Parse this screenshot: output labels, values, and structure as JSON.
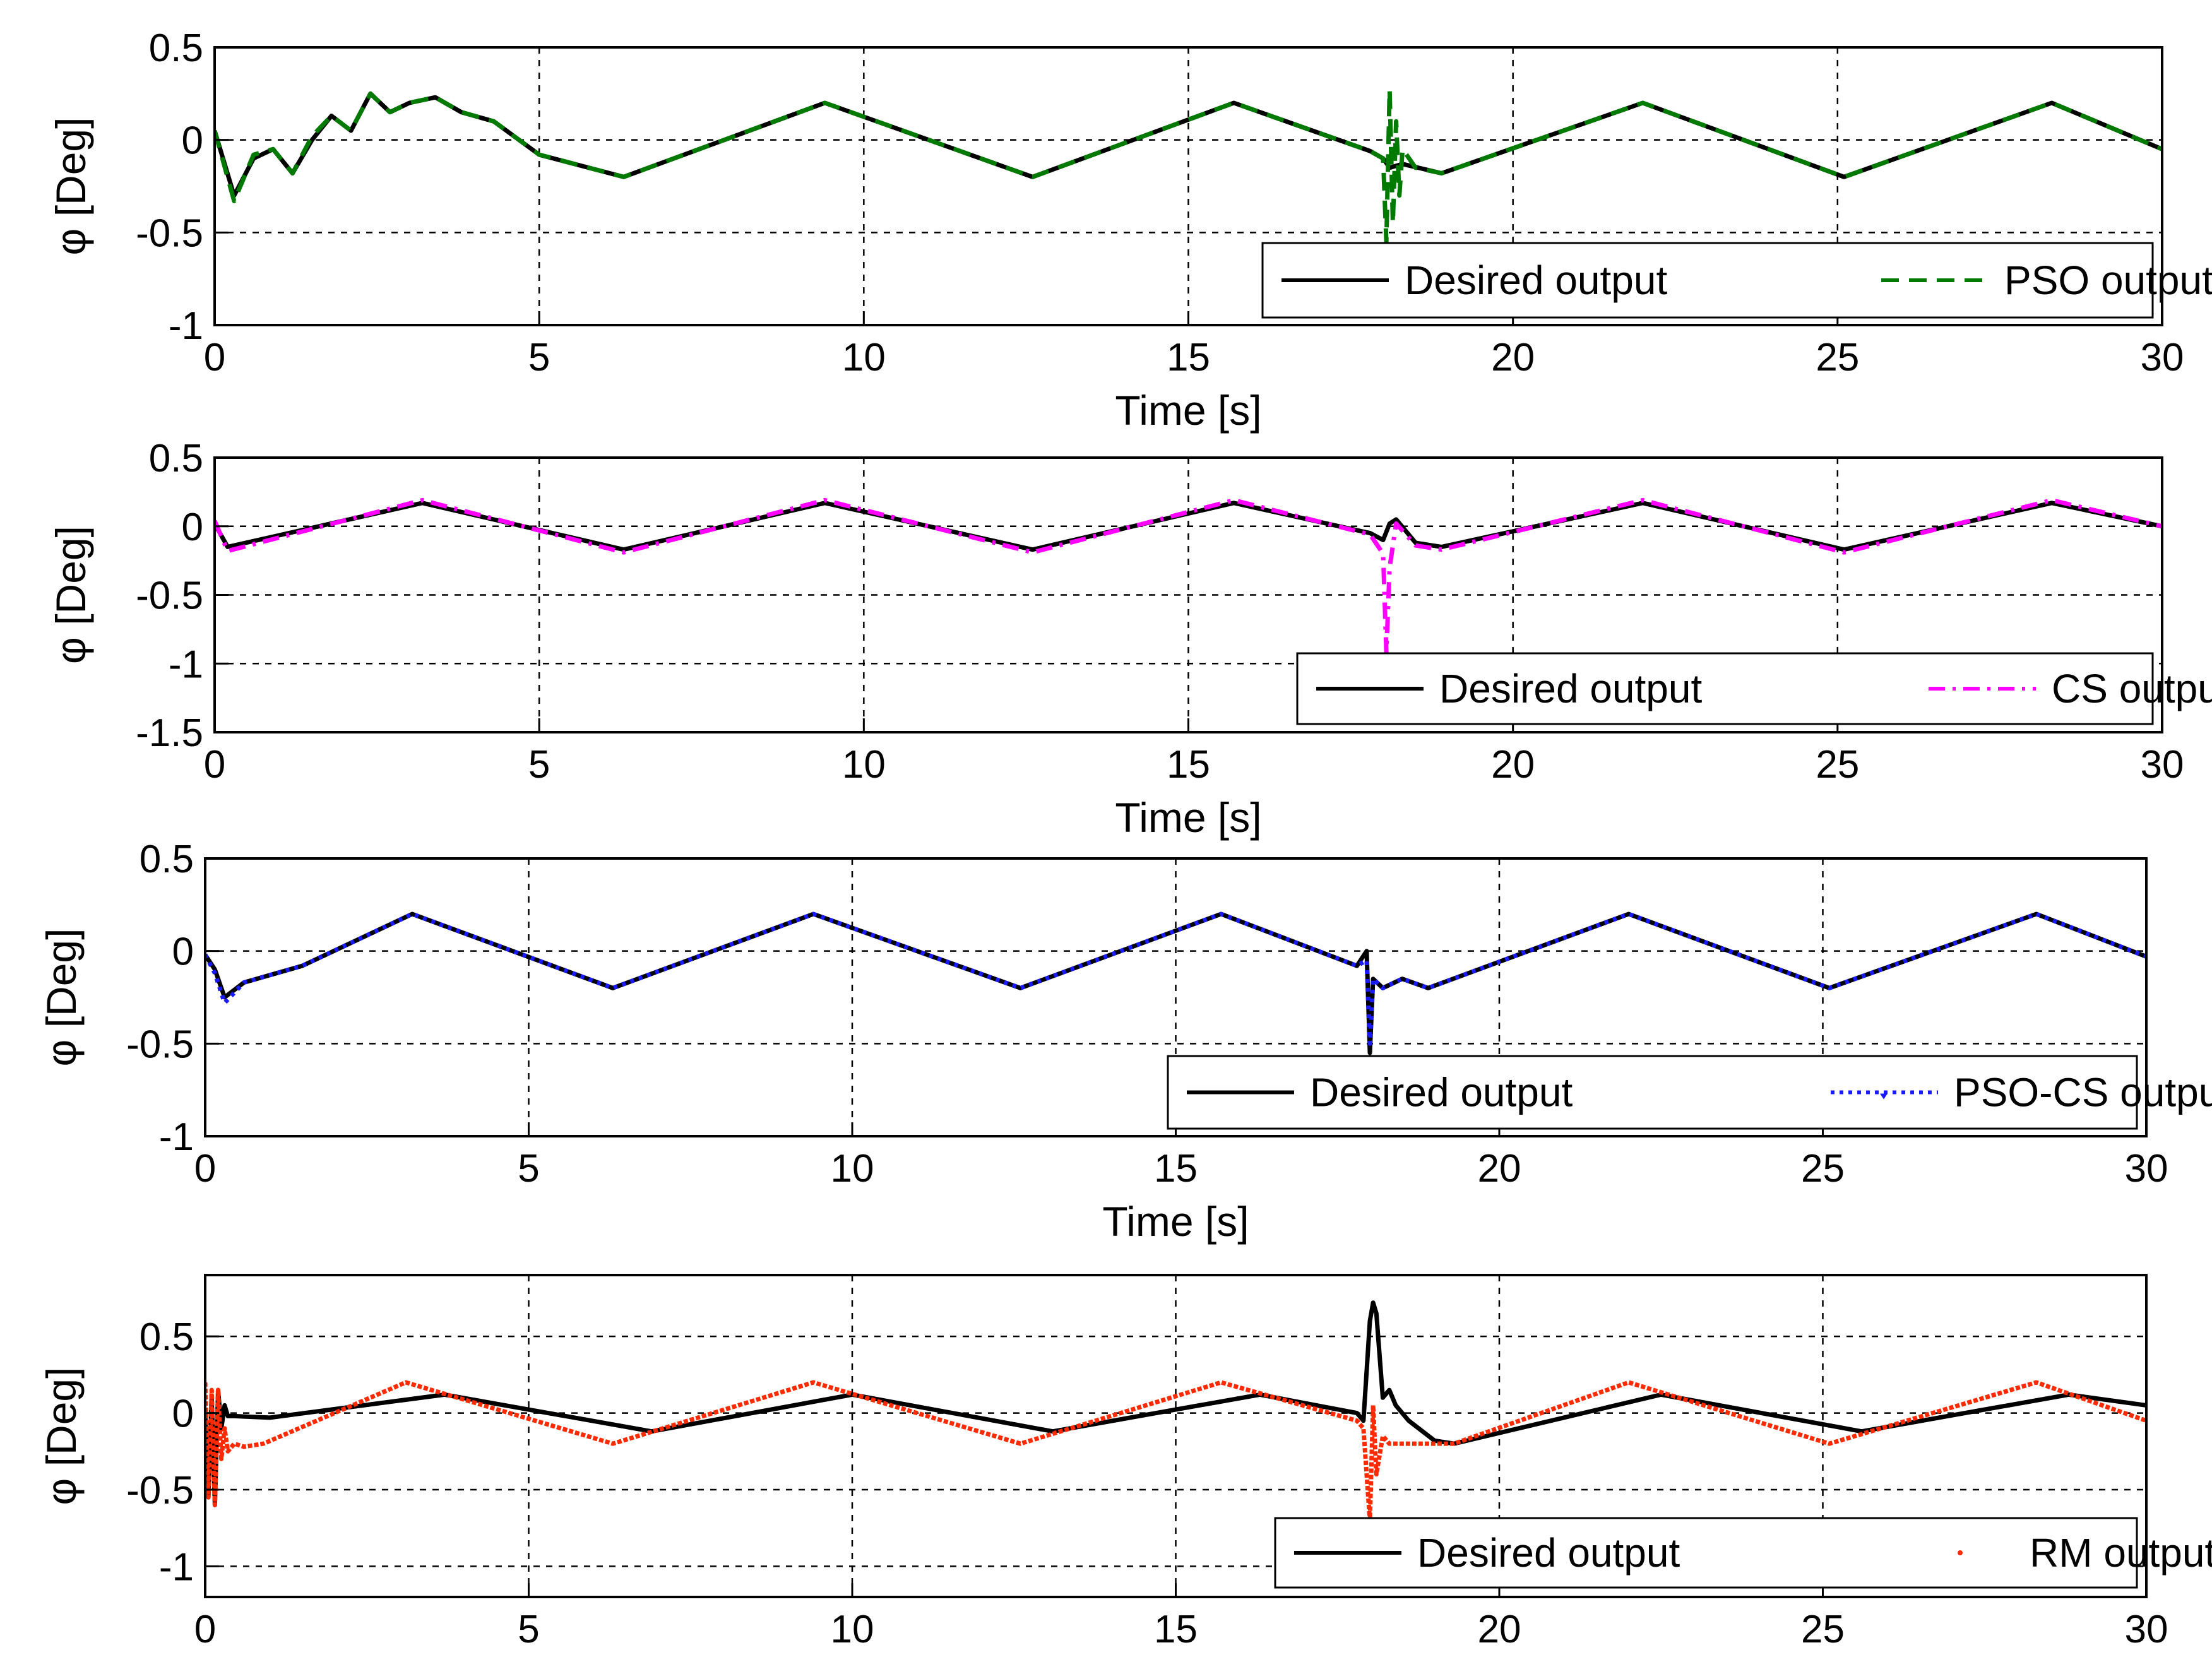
{
  "figure_title": "",
  "chart_data": [
    {
      "type": "line",
      "panel": 1,
      "xlabel": "Time [s]",
      "ylabel": "φ [Deg]",
      "xlim": [
        0,
        30
      ],
      "ylim": [
        -1,
        0.5
      ],
      "xticks": [
        0,
        5,
        10,
        15,
        20,
        25,
        30
      ],
      "xtick_labels": [
        "0",
        "5",
        "10",
        "15",
        "20",
        "25",
        "30"
      ],
      "yticks": [
        -1,
        -0.5,
        0,
        0.5
      ],
      "ytick_labels": [
        "-1",
        "-0.5",
        "0",
        "0.5"
      ],
      "grid": true,
      "legend_position": "lower-right",
      "series": [
        {
          "name": "Desired output",
          "color": "#000000",
          "style": "solid",
          "x": [
            0,
            0.3,
            0.6,
            0.9,
            1.2,
            1.5,
            1.8,
            2.1,
            2.4,
            2.7,
            3.0,
            3.4,
            3.8,
            4.3,
            5.0,
            6.3,
            9.4,
            12.6,
            15.7,
            17.8,
            18.0,
            18.1,
            18.3,
            18.9,
            22.0,
            25.1,
            28.3,
            30
          ],
          "y": [
            0.05,
            -0.3,
            -0.1,
            -0.05,
            -0.18,
            0.0,
            0.13,
            0.05,
            0.25,
            0.15,
            0.2,
            0.23,
            0.15,
            0.1,
            -0.08,
            -0.2,
            0.2,
            -0.2,
            0.2,
            -0.06,
            -0.1,
            -0.15,
            -0.13,
            -0.18,
            0.2,
            -0.2,
            0.2,
            -0.05
          ]
        },
        {
          "name": "PSO output",
          "color": "#007a00",
          "style": "dashed",
          "x": [
            0,
            0.3,
            0.6,
            0.9,
            1.2,
            1.5,
            1.8,
            2.1,
            2.4,
            2.7,
            3.0,
            3.4,
            3.8,
            4.3,
            5.0,
            6.3,
            9.4,
            12.6,
            15.7,
            17.8,
            18.0,
            18.05,
            18.1,
            18.15,
            18.2,
            18.25,
            18.3,
            18.5,
            18.9,
            22.0,
            25.1,
            28.3,
            30
          ],
          "y": [
            0.05,
            -0.33,
            -0.08,
            -0.05,
            -0.18,
            0.02,
            0.13,
            0.05,
            0.25,
            0.15,
            0.2,
            0.23,
            0.15,
            0.1,
            -0.08,
            -0.2,
            0.2,
            -0.2,
            0.2,
            -0.06,
            -0.1,
            -0.55,
            0.27,
            -0.45,
            0.1,
            -0.3,
            -0.05,
            -0.15,
            -0.18,
            0.2,
            -0.2,
            0.2,
            -0.05
          ]
        }
      ]
    },
    {
      "type": "line",
      "panel": 2,
      "xlabel": "Time [s]",
      "ylabel": "φ [Deg]",
      "xlim": [
        0,
        30
      ],
      "ylim": [
        -1.5,
        0.5
      ],
      "xticks": [
        0,
        5,
        10,
        15,
        20,
        25,
        30
      ],
      "xtick_labels": [
        "0",
        "5",
        "10",
        "15",
        "20",
        "25",
        "30"
      ],
      "yticks": [
        -1.5,
        -1,
        -0.5,
        0,
        0.5
      ],
      "ytick_labels": [
        "-1.5",
        "-1",
        "-0.5",
        "0",
        "0.5"
      ],
      "grid": true,
      "legend_position": "lower-right",
      "series": [
        {
          "name": "Desired output",
          "color": "#000000",
          "style": "solid",
          "x": [
            0,
            0.2,
            3.2,
            6.3,
            9.4,
            12.6,
            15.7,
            17.8,
            18.0,
            18.1,
            18.2,
            18.5,
            18.9,
            22.0,
            25.1,
            28.3,
            30
          ],
          "y": [
            0.02,
            -0.15,
            0.17,
            -0.17,
            0.17,
            -0.17,
            0.17,
            -0.05,
            -0.1,
            0.02,
            0.05,
            -0.12,
            -0.15,
            0.17,
            -0.17,
            0.17,
            0.0
          ]
        },
        {
          "name": "CS output",
          "color": "#ff00ff",
          "style": "dashdot",
          "x": [
            0,
            0.2,
            3.2,
            6.3,
            9.4,
            12.6,
            15.7,
            17.8,
            18.0,
            18.05,
            18.1,
            18.2,
            18.5,
            18.9,
            22.0,
            25.1,
            28.3,
            30
          ],
          "y": [
            0.04,
            -0.18,
            0.19,
            -0.19,
            0.19,
            -0.19,
            0.19,
            -0.06,
            -0.2,
            -0.92,
            -0.3,
            0.02,
            -0.14,
            -0.17,
            0.19,
            -0.19,
            0.19,
            0.0
          ]
        }
      ]
    },
    {
      "type": "line",
      "panel": 3,
      "xlabel": "Time [s]",
      "ylabel": "φ [Deg]",
      "xlim": [
        0,
        30
      ],
      "ylim": [
        -1,
        0.5
      ],
      "xticks": [
        0,
        5,
        10,
        15,
        20,
        25,
        30
      ],
      "xtick_labels": [
        "0",
        "5",
        "10",
        "15",
        "20",
        "25",
        "30"
      ],
      "yticks": [
        -1,
        -0.5,
        0,
        0.5
      ],
      "ytick_labels": [
        "-1",
        "-0.5",
        "0",
        "0.5"
      ],
      "grid": true,
      "legend_position": "lower-right",
      "series": [
        {
          "name": "Desired output",
          "color": "#000000",
          "style": "solid",
          "x": [
            0,
            0.15,
            0.3,
            0.6,
            1.5,
            3.2,
            6.3,
            9.4,
            12.6,
            15.7,
            17.8,
            17.95,
            18.0,
            18.05,
            18.2,
            18.5,
            18.9,
            22.0,
            25.1,
            28.3,
            30
          ],
          "y": [
            -0.02,
            -0.1,
            -0.25,
            -0.17,
            -0.08,
            0.2,
            -0.2,
            0.2,
            -0.2,
            0.2,
            -0.08,
            0.0,
            -0.55,
            -0.15,
            -0.2,
            -0.15,
            -0.2,
            0.2,
            -0.2,
            0.2,
            -0.03
          ]
        },
        {
          "name": "PSO-CS output",
          "color": "#1a1aff",
          "style": "dotted",
          "x": [
            0,
            0.15,
            0.3,
            0.6,
            1.5,
            3.2,
            6.3,
            9.4,
            12.6,
            15.7,
            17.8,
            17.95,
            18.0,
            18.05,
            18.2,
            18.5,
            18.9,
            22.0,
            25.1,
            28.3,
            30
          ],
          "y": [
            -0.02,
            -0.12,
            -0.28,
            -0.17,
            -0.08,
            0.2,
            -0.2,
            0.2,
            -0.2,
            0.2,
            -0.08,
            -0.05,
            -0.5,
            -0.15,
            -0.2,
            -0.15,
            -0.2,
            0.2,
            -0.2,
            0.2,
            -0.03
          ]
        }
      ]
    },
    {
      "type": "line",
      "panel": 4,
      "xlabel": "",
      "ylabel": "φ [Deg]",
      "xlim": [
        0,
        30
      ],
      "ylim": [
        -1.2,
        0.9
      ],
      "xticks": [
        0,
        5,
        10,
        15,
        20,
        25,
        30
      ],
      "xtick_labels": [
        "0",
        "5",
        "10",
        "15",
        "20",
        "25",
        "30"
      ],
      "yticks": [
        -1,
        -0.5,
        0,
        0.5
      ],
      "ytick_labels": [
        "-1",
        "-0.5",
        "0",
        "0.5"
      ],
      "grid": true,
      "legend_position": "lower-right",
      "series": [
        {
          "name": "Desired output",
          "color": "#000000",
          "style": "solid",
          "x": [
            0,
            0.05,
            0.1,
            0.15,
            0.2,
            0.25,
            0.3,
            0.35,
            0.45,
            1.0,
            3.7,
            6.9,
            10.0,
            13.1,
            16.3,
            17.8,
            17.9,
            18.0,
            18.05,
            18.1,
            18.2,
            18.3,
            18.4,
            18.6,
            19.0,
            19.3,
            22.5,
            25.6,
            28.8,
            30
          ],
          "y": [
            0.0,
            -0.55,
            0.1,
            -0.6,
            0.15,
            -0.1,
            0.05,
            -0.02,
            -0.02,
            -0.03,
            0.12,
            -0.12,
            0.12,
            -0.12,
            0.12,
            0.0,
            -0.05,
            0.6,
            0.72,
            0.65,
            0.1,
            0.15,
            0.05,
            -0.05,
            -0.18,
            -0.2,
            0.12,
            -0.12,
            0.12,
            0.05
          ]
        },
        {
          "name": "RM output",
          "color": "#ff2a00",
          "style": "points",
          "x": [
            0,
            0.05,
            0.1,
            0.15,
            0.2,
            0.25,
            0.3,
            0.35,
            0.45,
            0.6,
            0.9,
            3.1,
            6.3,
            9.4,
            12.6,
            15.7,
            17.8,
            17.9,
            18.0,
            18.05,
            18.1,
            18.2,
            18.3,
            18.4,
            18.6,
            19.0,
            19.3,
            22.0,
            25.1,
            28.3,
            30
          ],
          "y": [
            0.2,
            -0.55,
            0.15,
            -0.6,
            0.15,
            -0.3,
            -0.1,
            -0.25,
            -0.2,
            -0.22,
            -0.2,
            0.2,
            -0.2,
            0.2,
            -0.2,
            0.2,
            -0.05,
            -0.1,
            -0.7,
            0.05,
            -0.4,
            -0.15,
            -0.2,
            -0.2,
            -0.2,
            -0.2,
            -0.2,
            0.2,
            -0.2,
            0.2,
            -0.05
          ]
        }
      ]
    }
  ]
}
